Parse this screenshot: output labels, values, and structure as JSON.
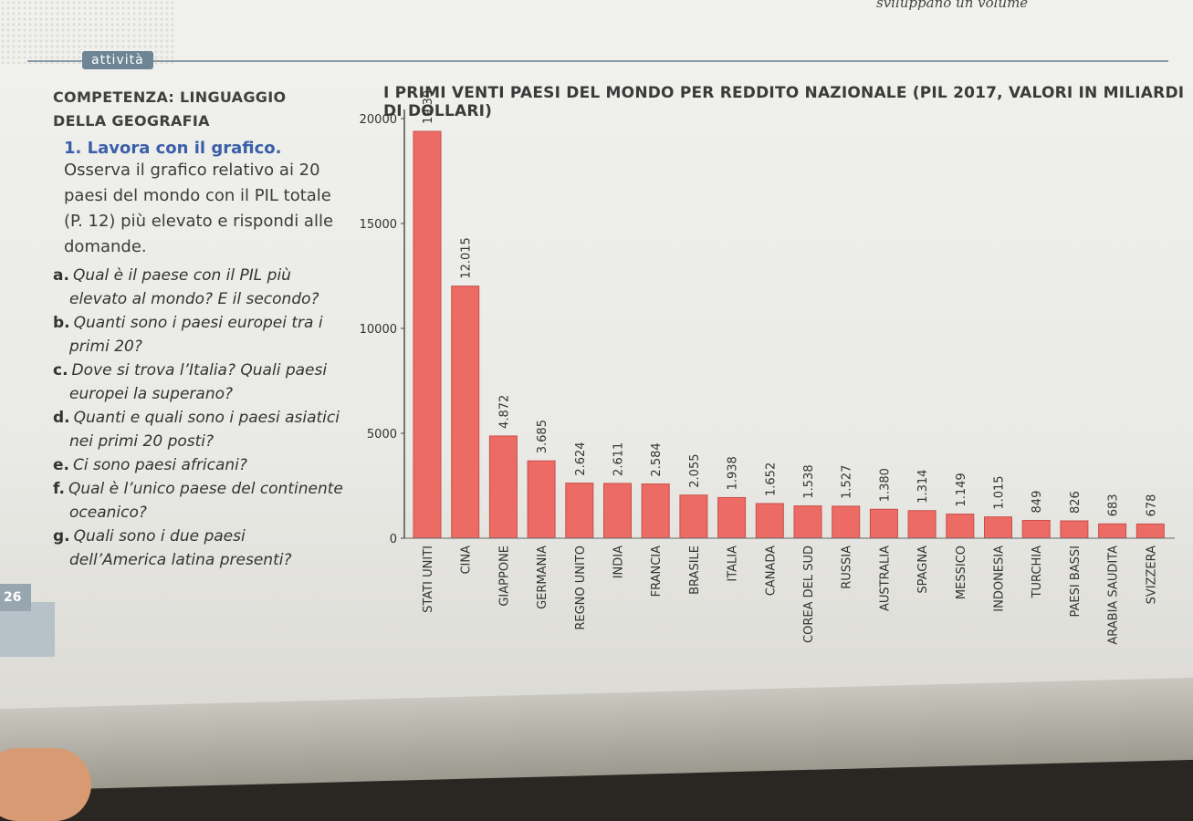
{
  "header": {
    "top_text": "sviluppano un volume",
    "badge": "attività",
    "page_number": "26"
  },
  "side": {
    "competenza_line1": "COMPETENZA: LINGUAGGIO",
    "competenza_line2": "DELLA GEOGRAFIA",
    "exercise_title": "1. Lavora con il grafico.",
    "exercise_body": "Osserva il grafico relativo ai 20 paesi del mondo con il PIL totale (P. 12) più elevato e rispondi alle domande.",
    "questions": [
      {
        "letter": "a.",
        "text": "Qual è il paese con il PIL più elevato al mondo? E il secondo?"
      },
      {
        "letter": "b.",
        "text": "Quanti sono i paesi europei tra i primi 20?"
      },
      {
        "letter": "c.",
        "text": "Dove si trova l’Italia? Quali paesi europei la superano?"
      },
      {
        "letter": "d.",
        "text": "Quanti e quali sono i paesi asiatici nei primi 20 posti?"
      },
      {
        "letter": "e.",
        "text": "Ci sono paesi africani?"
      },
      {
        "letter": "f.",
        "text": "Qual è l’unico paese del continente oceanico?"
      },
      {
        "letter": "g.",
        "text": "Quali sono i due paesi dell’America latina presenti?"
      }
    ]
  },
  "colors": {
    "bar": "#ec6b65",
    "bar_stroke": "#c94e49",
    "text": "#333333"
  },
  "chart_data": {
    "type": "bar",
    "title": "I PRIMI VENTI PAESI DEL MONDO PER REDDITO NAZIONALE (PIL 2017, VALORI IN MILIARDI DI DOLLARI)",
    "categories": [
      "STATI UNITI",
      "CINA",
      "GIAPPONE",
      "GERMANIA",
      "REGNO UNITO",
      "INDIA",
      "FRANCIA",
      "BRASILE",
      "ITALIA",
      "CANADA",
      "COREA DEL SUD",
      "RUSSIA",
      "AUSTRALIA",
      "SPAGNA",
      "MESSICO",
      "INDONESIA",
      "TURCHIA",
      "PAESI BASSI",
      "ARABIA SAUDITA",
      "SVIZZERA"
    ],
    "values": [
      19391,
      12015,
      4872,
      3685,
      2624,
      2611,
      2584,
      2055,
      1938,
      1652,
      1538,
      1527,
      1380,
      1314,
      1149,
      1015,
      849,
      826,
      683,
      678
    ],
    "value_labels": [
      "19.391",
      "12.015",
      "4.872",
      "3.685",
      "2.624",
      "2.611",
      "2.584",
      "2.055",
      "1.938",
      "1.652",
      "1.538",
      "1.527",
      "1.380",
      "1.314",
      "1.149",
      "1.015",
      "849",
      "826",
      "683",
      "678"
    ],
    "yticks": [
      "0",
      "5000",
      "10000",
      "15000",
      "20000"
    ],
    "ylim": [
      0,
      20000
    ],
    "xlabel": "",
    "ylabel": ""
  }
}
